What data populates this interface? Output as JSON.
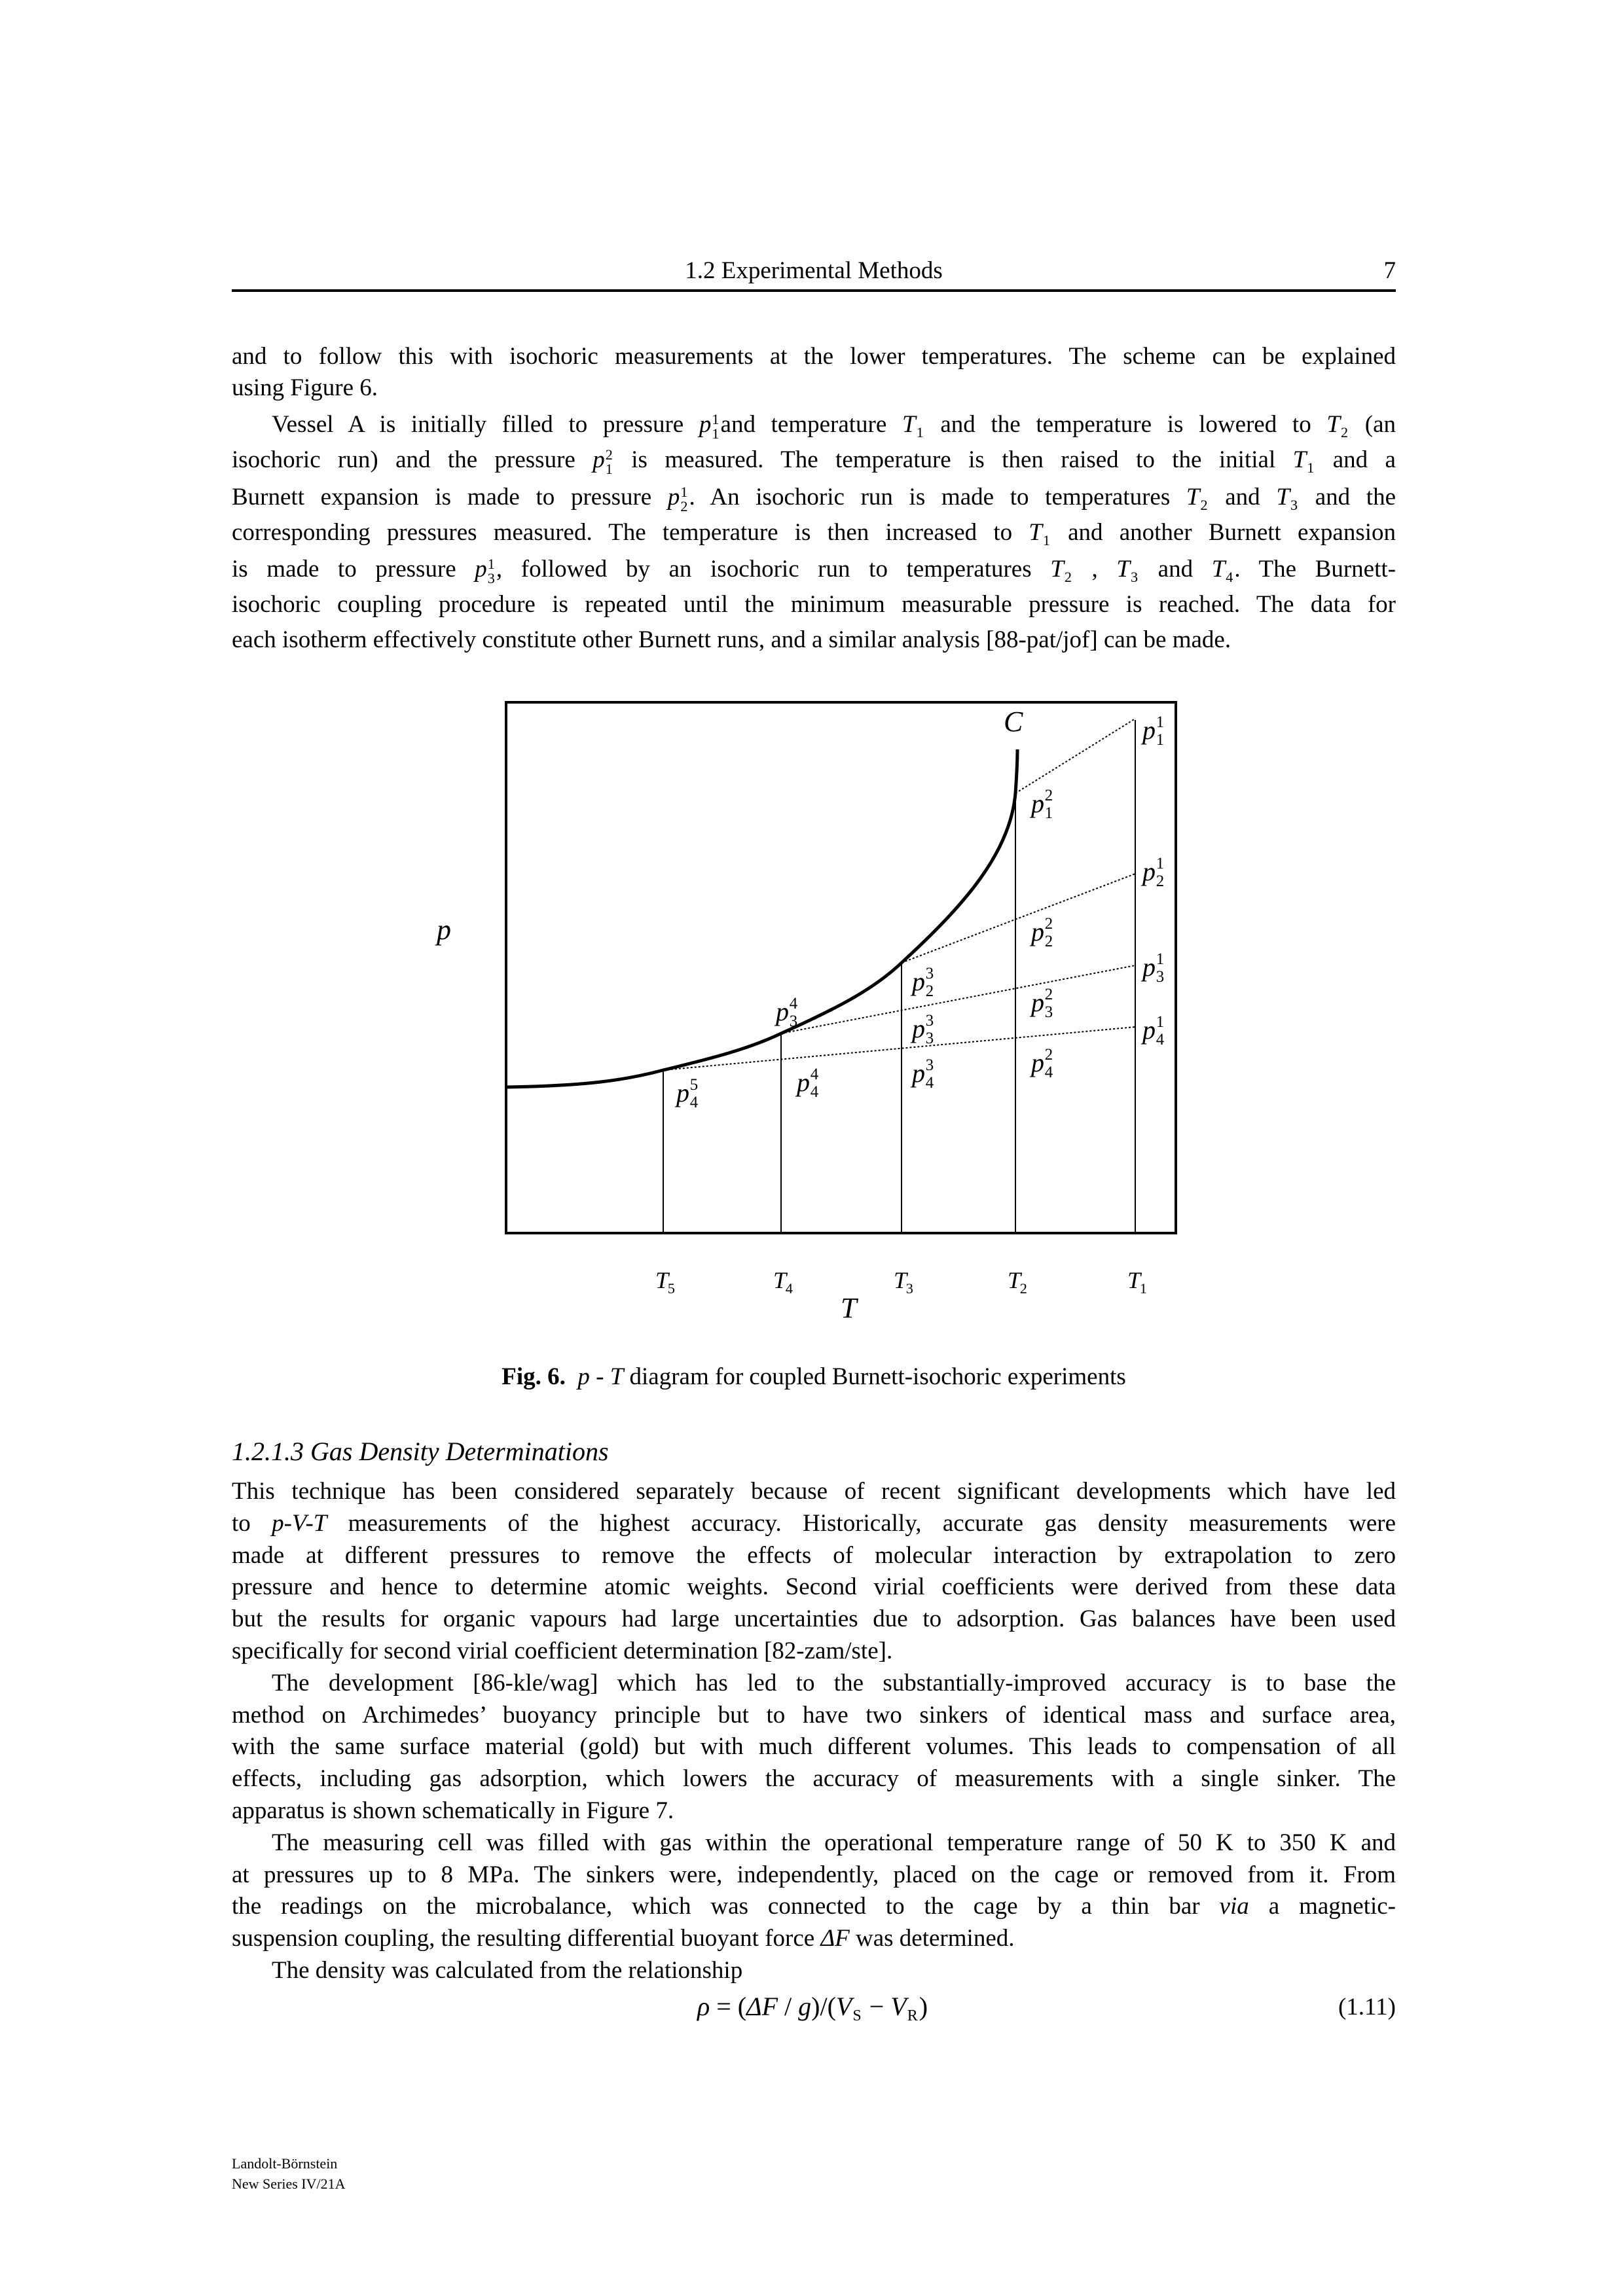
{
  "header": {
    "title": "1.2 Experimental Methods",
    "page_number": "7"
  },
  "paragraph1": [
    {
      "s": [
        "and to follow this with isochoric measurements at the lower temperatures. The scheme can be explained"
      ]
    },
    {
      "s": [
        "using Figure 6."
      ],
      "last": true
    },
    {
      "s": [
        "Vessel A is initially filled to pressure ",
        {
          "m": "p",
          "sub": "1",
          "sup": "1"
        },
        "and temperature ",
        {
          "m": "T",
          "sub": "1"
        },
        " and the temperature is lowered to ",
        {
          "m": "T",
          "sub": "2"
        },
        " (an"
      ],
      "indent": true
    },
    {
      "s": [
        "isochoric run) and the pressure ",
        {
          "m": "p",
          "sub": "1",
          "sup": "2"
        },
        " is measured. The temperature is then raised to the initial ",
        {
          "m": "T",
          "sub": "1"
        },
        " and a"
      ]
    },
    {
      "s": [
        "Burnett expansion is made to pressure ",
        {
          "m": "p",
          "sub": "2",
          "sup": "1"
        },
        ". An isochoric run is made to temperatures ",
        {
          "m": "T",
          "sub": "2"
        },
        " and ",
        {
          "m": "T",
          "sub": "3"
        },
        " and the"
      ]
    },
    {
      "s": [
        "corresponding pressures measured. The temperature is then increased to ",
        {
          "m": "T",
          "sub": "1"
        },
        " and another Burnett expansion"
      ]
    },
    {
      "s": [
        "is made to pressure ",
        {
          "m": "p",
          "sub": "3",
          "sup": "1"
        },
        ", followed by an isochoric run to temperatures ",
        {
          "m": "T",
          "sub": "2"
        },
        " , ",
        {
          "m": "T",
          "sub": "3"
        },
        " and ",
        {
          "m": "T",
          "sub": "4"
        },
        ". The Burnett-"
      ]
    },
    {
      "s": [
        "isochoric coupling procedure is repeated until the minimum measurable pressure is reached. The data for"
      ]
    },
    {
      "s": [
        "each isotherm effectively constitute other Burnett runs, and a similar analysis [88-pat/jof] can be made."
      ],
      "last": true
    }
  ],
  "figure": {
    "curve_label": "C",
    "y_axis_label": "p",
    "x_axis_label": "T",
    "temperature_labels": [
      {
        "m": "T",
        "sub": "5"
      },
      {
        "m": "T",
        "sub": "4"
      },
      {
        "m": "T",
        "sub": "3"
      },
      {
        "m": "T",
        "sub": "2"
      },
      {
        "m": "T",
        "sub": "1"
      }
    ],
    "pressure_labels": [
      {
        "m": "p",
        "sub": "1",
        "sup": "1"
      },
      {
        "m": "p",
        "sub": "1",
        "sup": "2"
      },
      {
        "m": "p",
        "sub": "2",
        "sup": "1"
      },
      {
        "m": "p",
        "sub": "2",
        "sup": "2"
      },
      {
        "m": "p",
        "sub": "3",
        "sup": "1"
      },
      {
        "m": "p",
        "sub": "2",
        "sup": "3"
      },
      {
        "m": "p",
        "sub": "3",
        "sup": "2"
      },
      {
        "m": "p",
        "sub": "3",
        "sup": "4"
      },
      {
        "m": "p",
        "sub": "3",
        "sup": "3"
      },
      {
        "m": "p",
        "sub": "4",
        "sup": "1"
      },
      {
        "m": "p",
        "sub": "4",
        "sup": "2"
      },
      {
        "m": "p",
        "sub": "4",
        "sup": "3"
      },
      {
        "m": "p",
        "sub": "4",
        "sup": "4"
      },
      {
        "m": "p",
        "sub": "4",
        "sup": "5"
      }
    ],
    "caption": {
      "label": "Fig. 6.",
      "p": "p",
      "dash": " - ",
      "T": "T",
      "text": " diagram for coupled Burnett-isochoric experiments"
    }
  },
  "section": {
    "title": "1.2.1.3 Gas Density Determinations"
  },
  "paragraph2": [
    {
      "s": [
        "This technique has been considered separately because of recent significant developments which have led"
      ]
    },
    {
      "s": [
        "to ",
        {
          "i": "p-V-T"
        },
        " measurements of the highest accuracy. Historically, accurate gas density measurements were"
      ]
    },
    {
      "s": [
        "made at different pressures to remove the effects of molecular interaction by extrapolation to zero"
      ]
    },
    {
      "s": [
        "pressure and hence to determine atomic weights. Second virial coefficients were derived from these data"
      ]
    },
    {
      "s": [
        "but the results for organic vapours had large uncertainties due to adsorption. Gas balances have been used"
      ]
    },
    {
      "s": [
        "specifically for second virial coefficient determination [82-zam/ste]."
      ],
      "last": true
    },
    {
      "s": [
        "The development [86-kle/wag] which has led to the substantially-improved accuracy is to base the"
      ],
      "indent": true
    },
    {
      "s": [
        "method on Archimedes’ buoyancy principle but to have two sinkers of identical mass and surface area,"
      ]
    },
    {
      "s": [
        "with the same surface material (gold) but with much different volumes. This leads to compensation of all"
      ]
    },
    {
      "s": [
        "effects, including gas adsorption, which lowers the accuracy of measurements with a single sinker. The"
      ]
    },
    {
      "s": [
        "apparatus is shown schematically in Figure 7."
      ],
      "last": true
    },
    {
      "s": [
        "The measuring cell was filled with gas within the operational temperature range of 50 K to 350 K and"
      ],
      "indent": true
    },
    {
      "s": [
        "at pressures up to 8 MPa. The sinkers were, independently, placed on the cage or removed from it. From"
      ]
    },
    {
      "s": [
        "the readings on the microbalance, which was connected to the cage by a thin bar ",
        {
          "i": "via"
        },
        " a magnetic-"
      ]
    },
    {
      "s": [
        "suspension coupling, the resulting differential buoyant force ",
        {
          "i": "ΔF"
        },
        " was determined."
      ],
      "last": true
    },
    {
      "s": [
        "The density was calculated from the relationship"
      ],
      "indent": true,
      "last": true
    }
  ],
  "equation": {
    "s": [
      {
        "i": "ρ"
      },
      " = (",
      {
        "i": "ΔF"
      },
      " / ",
      {
        "i": "g"
      },
      ")/(",
      {
        "m": "V",
        "sub": "S"
      },
      " − ",
      {
        "m": "V",
        "sub": "R"
      },
      ")"
    ],
    "number": "(1.11)"
  },
  "footer": {
    "line1": "Landolt-Börnstein",
    "line2": "New Series IV/21A"
  }
}
